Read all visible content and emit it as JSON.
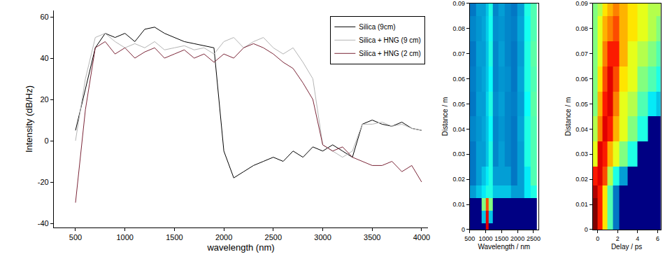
{
  "chart_data": [
    {
      "type": "line",
      "xlabel": "wavelength (nm)",
      "ylabel": "Intensity (dB/Hz)",
      "x": [
        500,
        600,
        700,
        800,
        900,
        1000,
        1100,
        1200,
        1300,
        1400,
        1500,
        1600,
        1700,
        1800,
        1900,
        2000,
        2100,
        2200,
        2300,
        2400,
        2500,
        2600,
        2700,
        2800,
        2900,
        3000,
        3100,
        3200,
        3300,
        3400,
        3500,
        3600,
        3700,
        3800,
        3900,
        4000
      ],
      "series": [
        {
          "name": "Silica (9cm)",
          "color": "#000000",
          "values": [
            5,
            25,
            45,
            52,
            50,
            52,
            48,
            54,
            55,
            52,
            50,
            48,
            47,
            46,
            45,
            -5,
            -18,
            -15,
            -12,
            -10,
            -8,
            -10,
            -5,
            -8,
            -3,
            -5,
            -2,
            -5,
            -8,
            8,
            10,
            8,
            7,
            9,
            6,
            5
          ]
        },
        {
          "name": "Silica + HNG (9 cm)",
          "color": "#b4b4b4",
          "values": [
            0,
            30,
            50,
            52,
            48,
            45,
            47,
            45,
            48,
            44,
            45,
            46,
            44,
            45,
            42,
            48,
            50,
            45,
            48,
            50,
            45,
            42,
            45,
            38,
            30,
            -2,
            -5,
            -8,
            -5,
            8,
            8,
            9,
            7,
            8,
            6,
            5
          ]
        },
        {
          "name": "Silica + HNG (2 cm)",
          "color": "#7b2638",
          "values": [
            -30,
            15,
            45,
            48,
            42,
            45,
            40,
            43,
            45,
            40,
            42,
            44,
            40,
            42,
            38,
            42,
            40,
            45,
            47,
            45,
            42,
            38,
            35,
            28,
            20,
            -2,
            -5,
            -3,
            -8,
            -10,
            -12,
            -12,
            -10,
            -15,
            -12,
            -20
          ]
        }
      ],
      "xlim": [
        280,
        4065
      ],
      "xticks": [
        500,
        1000,
        1500,
        2000,
        2500,
        3000,
        3500,
        4000
      ],
      "ylim": [
        -42,
        63
      ],
      "yticks": [
        -40,
        -20,
        0,
        20,
        40,
        60
      ],
      "grid": false,
      "legend": "upper right"
    },
    {
      "type": "heatmap",
      "xlabel": "Wavelength / nm",
      "ylabel": "Distance / m",
      "x": [
        600,
        800,
        950,
        1050,
        1150,
        1300,
        1500,
        1700,
        1900,
        2100,
        2300,
        2500
      ],
      "y": [
        0,
        0.005,
        0.01,
        0.015,
        0.02,
        0.03,
        0.04,
        0.05,
        0.06,
        0.07,
        0.08,
        0.09
      ],
      "z": [
        [
          0,
          0,
          0,
          0.9,
          0,
          0,
          0,
          0,
          0,
          0,
          0,
          0
        ],
        [
          0,
          0,
          0.3,
          0.9,
          0.3,
          0,
          0,
          0,
          0,
          0,
          0,
          0
        ],
        [
          0,
          0,
          0.5,
          0.8,
          0.5,
          0,
          0,
          0,
          0,
          0,
          0,
          0
        ],
        [
          0.25,
          0.3,
          0.35,
          0.4,
          0.4,
          0.3,
          0.3,
          0.3,
          0.25,
          0.25,
          0.35,
          0.4
        ],
        [
          0.2,
          0.25,
          0.3,
          0.35,
          0.4,
          0.25,
          0.25,
          0.25,
          0.2,
          0.25,
          0.35,
          0.45
        ],
        [
          0.2,
          0.25,
          0.25,
          0.3,
          0.4,
          0.22,
          0.25,
          0.22,
          0.2,
          0.25,
          0.4,
          0.45
        ],
        [
          0.22,
          0.24,
          0.26,
          0.3,
          0.38,
          0.22,
          0.24,
          0.22,
          0.2,
          0.26,
          0.4,
          0.45
        ],
        [
          0.2,
          0.25,
          0.25,
          0.32,
          0.4,
          0.23,
          0.25,
          0.22,
          0.21,
          0.25,
          0.38,
          0.46
        ],
        [
          0.21,
          0.24,
          0.26,
          0.3,
          0.38,
          0.22,
          0.24,
          0.23,
          0.2,
          0.26,
          0.4,
          0.45
        ],
        [
          0.2,
          0.25,
          0.25,
          0.3,
          0.4,
          0.22,
          0.25,
          0.22,
          0.2,
          0.25,
          0.4,
          0.46
        ],
        [
          0.22,
          0.24,
          0.26,
          0.31,
          0.39,
          0.23,
          0.24,
          0.22,
          0.21,
          0.26,
          0.39,
          0.45
        ],
        [
          0.2,
          0.25,
          0.25,
          0.3,
          0.4,
          0.22,
          0.25,
          0.22,
          0.2,
          0.25,
          0.4,
          0.45
        ]
      ],
      "zlim": [
        0,
        1
      ],
      "xlim": [
        500,
        2650
      ],
      "xticks": [
        500,
        1000,
        1500,
        2000,
        2500
      ],
      "ylim": [
        0,
        0.09
      ],
      "yticks": [
        0,
        0.01,
        0.02,
        0.03,
        0.04,
        0.05,
        0.06,
        0.07,
        0.08,
        0.09
      ]
    },
    {
      "type": "heatmap",
      "xlabel": "Delay / ps",
      "ylabel": "Distance / m",
      "x": [
        -0.3,
        0.25,
        0.75,
        1.25,
        1.75,
        2.5,
        3.5,
        4.5,
        5.5,
        6.2
      ],
      "y": [
        0,
        0.005,
        0.01,
        0.015,
        0.02,
        0.03,
        0.04,
        0.05,
        0.06,
        0.07,
        0.08,
        0.09
      ],
      "z": [
        [
          1.0,
          0.85,
          0.65,
          0.45,
          0.2,
          0,
          0,
          0,
          0,
          0
        ],
        [
          1.0,
          0.85,
          0.65,
          0.45,
          0.2,
          0,
          0,
          0,
          0,
          0
        ],
        [
          1.0,
          0.85,
          0.65,
          0.45,
          0.2,
          0,
          0,
          0,
          0,
          0
        ],
        [
          0.95,
          0.85,
          0.65,
          0.45,
          0.2,
          0,
          0,
          0,
          0,
          0
        ],
        [
          0.85,
          0.9,
          0.8,
          0.55,
          0.4,
          0.25,
          0,
          0,
          0,
          0
        ],
        [
          0.6,
          0.9,
          0.85,
          0.7,
          0.6,
          0.5,
          0.4,
          0,
          0,
          0
        ],
        [
          0.55,
          0.75,
          0.9,
          0.85,
          0.7,
          0.6,
          0.5,
          0.4,
          0,
          0
        ],
        [
          0.5,
          0.7,
          0.85,
          0.9,
          0.75,
          0.6,
          0.55,
          0.45,
          0.35,
          0.3
        ],
        [
          0.5,
          0.65,
          0.8,
          0.9,
          0.8,
          0.65,
          0.6,
          0.5,
          0.45,
          0.4
        ],
        [
          0.5,
          0.6,
          0.75,
          0.85,
          0.85,
          0.7,
          0.6,
          0.55,
          0.5,
          0.45
        ],
        [
          0.5,
          0.6,
          0.7,
          0.75,
          0.8,
          0.7,
          0.65,
          0.6,
          0.55,
          0.5
        ],
        [
          0.5,
          0.55,
          0.65,
          0.7,
          0.75,
          0.7,
          0.65,
          0.6,
          0.55,
          0.55
        ]
      ],
      "zlim": [
        0,
        1
      ],
      "xlim": [
        -0.5,
        6.3
      ],
      "xticks": [
        0,
        2,
        4,
        6
      ],
      "ylim": [
        0,
        0.09
      ],
      "yticks": [
        0,
        0.01,
        0.02,
        0.03,
        0.04,
        0.05,
        0.06,
        0.07,
        0.08,
        0.09
      ]
    }
  ]
}
